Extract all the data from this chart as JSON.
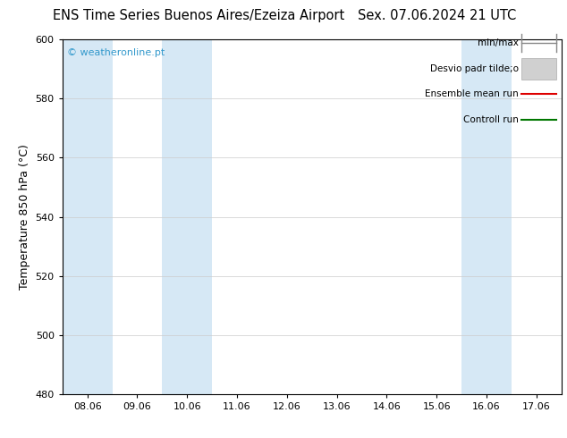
{
  "title_left": "ENS Time Series Buenos Aires/Ezeiza Airport",
  "title_right": "Sex. 07.06.2024 21 UTC",
  "ylabel": "Temperature 850 hPa (°C)",
  "watermark": "© weatheronline.pt",
  "ylim": [
    480,
    600
  ],
  "yticks": [
    480,
    500,
    520,
    540,
    560,
    580,
    600
  ],
  "x_labels": [
    "08.06",
    "09.06",
    "10.06",
    "11.06",
    "12.06",
    "13.06",
    "14.06",
    "15.06",
    "16.06",
    "17.06"
  ],
  "x_positions": [
    0,
    1,
    2,
    3,
    4,
    5,
    6,
    7,
    8,
    9
  ],
  "xlim": [
    -0.5,
    9.5
  ],
  "shaded_bands": [
    {
      "xmin": -0.5,
      "xmax": 0.5,
      "color": "#d6e8f5"
    },
    {
      "xmin": 1.5,
      "xmax": 2.5,
      "color": "#d6e8f5"
    },
    {
      "xmin": 7.5,
      "xmax": 8.5,
      "color": "#d6e8f5"
    },
    {
      "xmin": 9.5,
      "xmax": 10.5,
      "color": "#d6e8f5"
    }
  ],
  "legend_items": [
    {
      "label": "min/max",
      "color": "#888888",
      "style": "minmax"
    },
    {
      "label": "Desvio padr tilde;o",
      "color": "#cccccc",
      "style": "stddev"
    },
    {
      "label": "Ensemble mean run",
      "color": "#dd0000",
      "style": "line"
    },
    {
      "label": "Controll run",
      "color": "#007700",
      "style": "line"
    }
  ],
  "background_color": "#ffffff",
  "plot_bg_color": "#ffffff",
  "grid_color": "#cccccc",
  "title_fontsize": 10.5,
  "axis_fontsize": 9,
  "tick_fontsize": 8,
  "legend_fontsize": 7.5,
  "watermark_color": "#3399cc",
  "watermark_fontsize": 8
}
